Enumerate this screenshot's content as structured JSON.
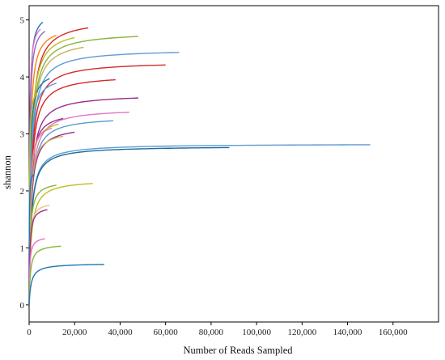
{
  "chart_data": {
    "type": "line",
    "title": "",
    "xlabel": "Number of Reads Sampled",
    "ylabel": "shannon",
    "xlim": [
      0,
      180000
    ],
    "ylim": [
      -0.3,
      5.25
    ],
    "x_ticks": [
      0,
      20000,
      40000,
      60000,
      80000,
      100000,
      120000,
      140000,
      160000
    ],
    "x_tick_labels": [
      "0",
      "20,000",
      "40,000",
      "60,000",
      "80,000",
      "100,000",
      "120,000",
      "140,000",
      "160,000"
    ],
    "y_ticks": [
      0,
      1,
      2,
      3,
      4,
      5
    ],
    "y_tick_labels": [
      "0",
      "1",
      "2",
      "3",
      "4",
      "5"
    ],
    "grid": false,
    "legend": "none",
    "series": [
      {
        "max_x": 6000,
        "plateau": 4.96,
        "color": "#1f77b4"
      },
      {
        "max_x": 26000,
        "plateau": 4.86,
        "color": "#d62728"
      },
      {
        "max_x": 5000,
        "plateau": 4.84,
        "color": "#e377c2"
      },
      {
        "max_x": 7000,
        "plateau": 4.8,
        "color": "#9467bd"
      },
      {
        "max_x": 12000,
        "plateau": 4.73,
        "color": "#ff7f0e"
      },
      {
        "max_x": 48000,
        "plateau": 4.71,
        "color": "#8ab33f"
      },
      {
        "max_x": 20000,
        "plateau": 4.69,
        "color": "#bcbd22"
      },
      {
        "max_x": 24000,
        "plateau": 4.52,
        "color": "#c7b35a"
      },
      {
        "max_x": 66000,
        "plateau": 4.43,
        "color": "#5b9bd5"
      },
      {
        "max_x": 60000,
        "plateau": 4.21,
        "color": "#d62728"
      },
      {
        "max_x": 9000,
        "plateau": 3.97,
        "color": "#1f77b4"
      },
      {
        "max_x": 38000,
        "plateau": 3.95,
        "color": "#d62728"
      },
      {
        "max_x": 12000,
        "plateau": 3.89,
        "color": "#5b9bd5"
      },
      {
        "max_x": 4000,
        "plateau": 3.74,
        "color": "#bcbd22"
      },
      {
        "max_x": 48000,
        "plateau": 3.63,
        "color": "#9b2d8f"
      },
      {
        "max_x": 44000,
        "plateau": 3.38,
        "color": "#e377c2"
      },
      {
        "max_x": 15000,
        "plateau": 3.27,
        "color": "#9b2d8f"
      },
      {
        "max_x": 37000,
        "plateau": 3.23,
        "color": "#5b9bd5"
      },
      {
        "max_x": 13000,
        "plateau": 3.17,
        "color": "#bcbd22"
      },
      {
        "max_x": 10000,
        "plateau": 3.1,
        "color": "#e377c2"
      },
      {
        "max_x": 20000,
        "plateau": 3.03,
        "color": "#9b2d8f"
      },
      {
        "max_x": 15000,
        "plateau": 2.96,
        "color": "#c7b35a"
      },
      {
        "max_x": 150000,
        "plateau": 2.81,
        "color": "#5b9bd5"
      },
      {
        "max_x": 88000,
        "plateau": 2.76,
        "color": "#1f6b9a"
      },
      {
        "max_x": 2000,
        "plateau": 2.38,
        "color": "#5b9bd5"
      },
      {
        "max_x": 2000,
        "plateau": 2.29,
        "color": "#1f77b4"
      },
      {
        "max_x": 28000,
        "plateau": 2.13,
        "color": "#bcbd22"
      },
      {
        "max_x": 12000,
        "plateau": 2.1,
        "color": "#8ab33f"
      },
      {
        "max_x": 9000,
        "plateau": 1.75,
        "color": "#f0c27a"
      },
      {
        "max_x": 8000,
        "plateau": 1.67,
        "color": "#9b2d8f"
      },
      {
        "max_x": 7000,
        "plateau": 1.16,
        "color": "#e377c2"
      },
      {
        "max_x": 14000,
        "plateau": 1.03,
        "color": "#8ab33f"
      },
      {
        "max_x": 33000,
        "plateau": 0.71,
        "color": "#1f77b4"
      }
    ]
  }
}
